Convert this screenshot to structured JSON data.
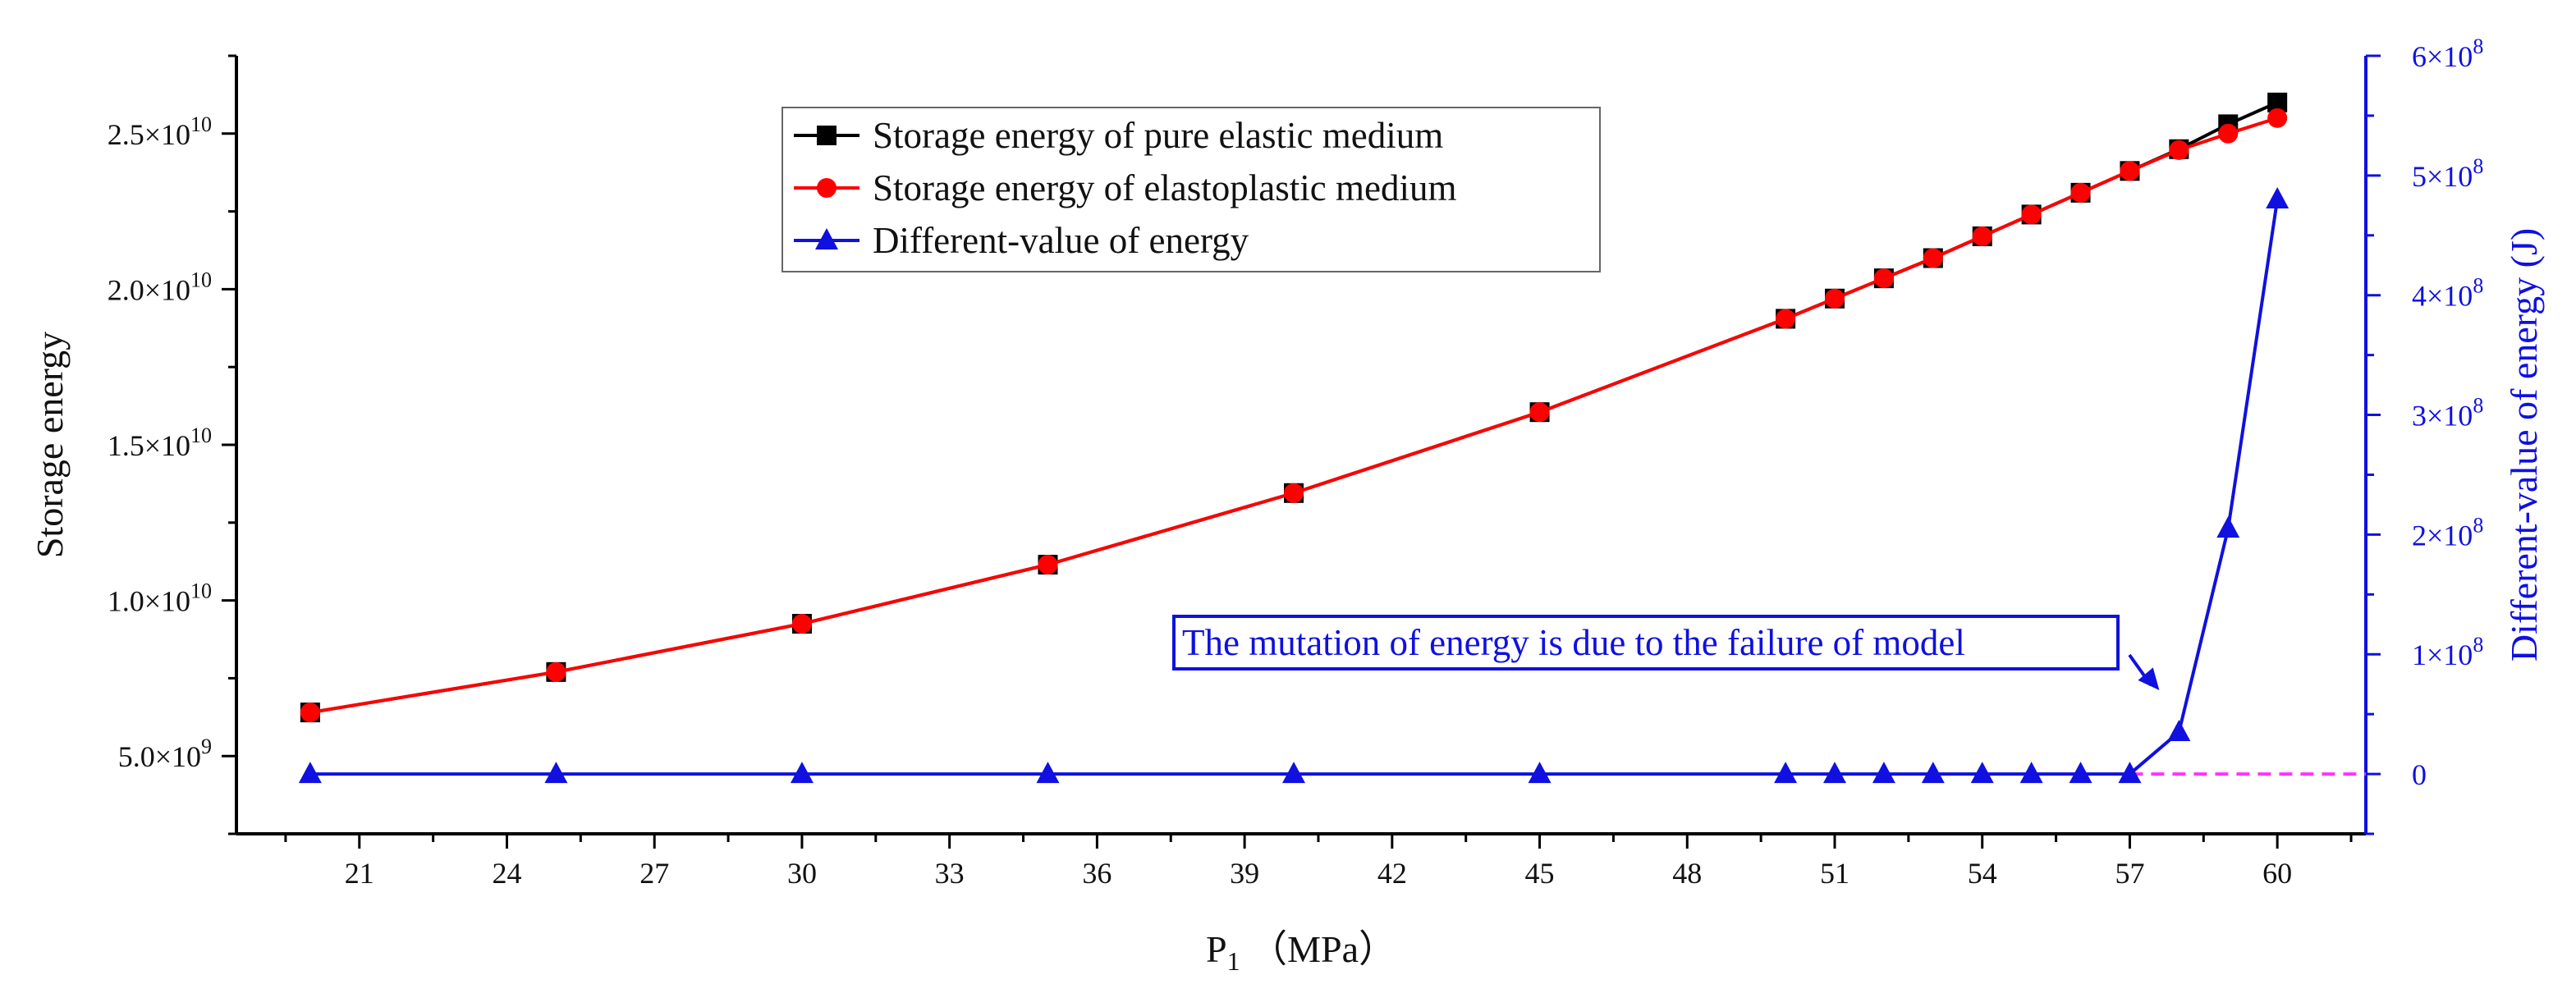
{
  "chart_data": {
    "type": "line",
    "title": "",
    "xlabel": "P",
    "xlabel_sub": "1",
    "xlabel_unit": "（MPa）",
    "ylabel": "Storage energy",
    "y2label": "Different-value of energy (J)",
    "xlim": [
      18.5,
      61.8
    ],
    "ylim": [
      2500000000.0,
      27500000000.0
    ],
    "y2lim": [
      -50000000.0,
      600000000.0
    ],
    "x_ticks": [
      21,
      24,
      27,
      30,
      33,
      36,
      39,
      42,
      45,
      48,
      51,
      54,
      57,
      60
    ],
    "x_tick_labels": [
      "21",
      "24",
      "27",
      "30",
      "33",
      "36",
      "39",
      "42",
      "45",
      "48",
      "51",
      "54",
      "57",
      "60"
    ],
    "y_ticks": [
      5000000000.0,
      10000000000.0,
      15000000000.0,
      20000000000.0,
      25000000000.0
    ],
    "y_tick_labels": [
      {
        "mant": "5.0×10",
        "exp": "9"
      },
      {
        "mant": "1.0×10",
        "exp": "10"
      },
      {
        "mant": "1.5×10",
        "exp": "10"
      },
      {
        "mant": "2.0×10",
        "exp": "10"
      },
      {
        "mant": "2.5×10",
        "exp": "10"
      }
    ],
    "y2_ticks": [
      0,
      100000000.0,
      200000000.0,
      300000000.0,
      400000000.0,
      500000000.0,
      600000000.0
    ],
    "y2_tick_labels": [
      {
        "mant": "0",
        "exp": ""
      },
      {
        "mant": "1×10",
        "exp": "8"
      },
      {
        "mant": "2×10",
        "exp": "8"
      },
      {
        "mant": "3×10",
        "exp": "8"
      },
      {
        "mant": "4×10",
        "exp": "8"
      },
      {
        "mant": "5×10",
        "exp": "8"
      },
      {
        "mant": "6×10",
        "exp": "8"
      }
    ],
    "x": [
      20,
      25,
      30,
      35,
      40,
      45,
      50,
      51,
      52,
      53,
      54,
      55,
      56,
      57,
      58,
      59,
      60
    ],
    "series": [
      {
        "name": "Storage energy of pure elastic medium",
        "axis": "left",
        "color": "#000000",
        "marker": "square",
        "values": [
          6400000000.0,
          7700000000.0,
          9250000000.0,
          11150000000.0,
          13450000000.0,
          16050000000.0,
          19050000000.0,
          19700000000.0,
          20350000000.0,
          21000000000.0,
          21700000000.0,
          22400000000.0,
          23100000000.0,
          23800000000.0,
          24500000000.0,
          25300000000.0,
          26000000000.0
        ]
      },
      {
        "name": "Storage energy of elastoplastic medium",
        "axis": "left",
        "color": "#ff0000",
        "marker": "circle",
        "values": [
          6400000000.0,
          7700000000.0,
          9250000000.0,
          11150000000.0,
          13450000000.0,
          16050000000.0,
          19050000000.0,
          19700000000.0,
          20350000000.0,
          21000000000.0,
          21700000000.0,
          22400000000.0,
          23100000000.0,
          23800000000.0,
          24470000000.0,
          25000000000.0,
          25500000000.0
        ]
      },
      {
        "name": "Different-value of energy",
        "axis": "right",
        "color": "#1010e0",
        "marker": "triangle",
        "values": [
          0,
          0,
          0,
          0,
          0,
          0,
          0,
          0,
          0,
          0,
          0,
          0,
          0,
          0,
          35000000.0,
          205000000.0,
          480000000.0
        ]
      }
    ],
    "reference_line": {
      "axis": "right",
      "y": 0,
      "x_from": 57,
      "x_to": 61.8,
      "color": "#ff33ff",
      "style": "dashed"
    },
    "annotation": {
      "text": "The mutation of energy is due to the failure of model",
      "arrow_to_x": 57.6,
      "arrow_to_y2": 70000000.0
    },
    "legend_placement": "top-center"
  }
}
